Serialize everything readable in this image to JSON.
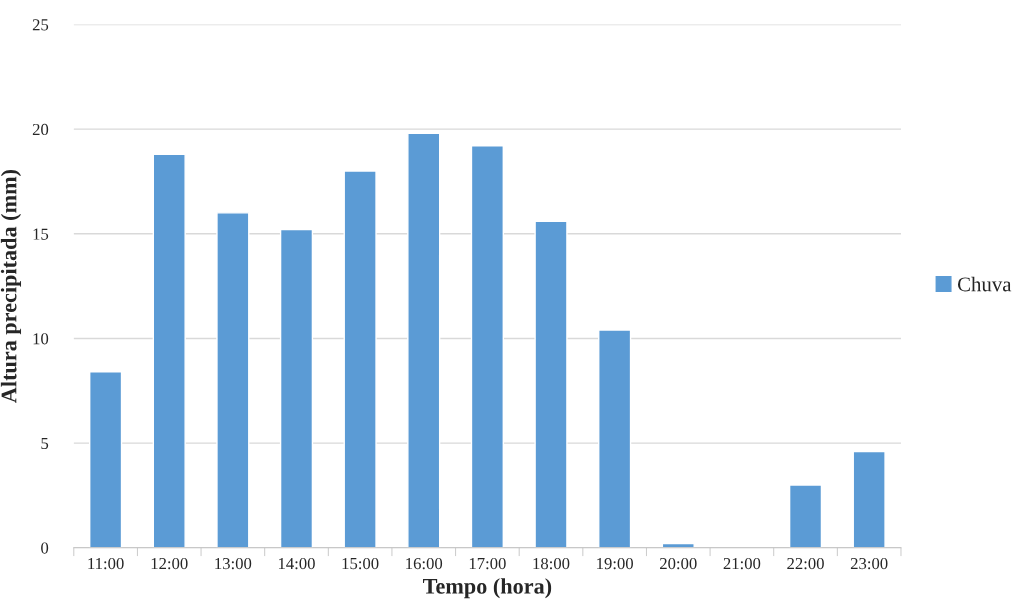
{
  "chart_data": {
    "type": "bar",
    "xlabel": "Tempo (hora)",
    "ylabel": "Altura precipitada (mm)",
    "categories": [
      "11:00",
      "12:00",
      "13:00",
      "14:00",
      "15:00",
      "16:00",
      "17:00",
      "18:00",
      "19:00",
      "20:00",
      "21:00",
      "22:00",
      "23:00"
    ],
    "series": [
      {
        "name": "Chuva",
        "color": "#5b9bd5",
        "values": [
          8.4,
          18.8,
          16.0,
          15.2,
          18.0,
          19.8,
          19.2,
          15.6,
          10.4,
          0.2,
          null,
          3.0,
          4.6
        ]
      }
    ],
    "ylim": [
      0,
      25
    ],
    "yticks": [
      0,
      5,
      10,
      15,
      20,
      25
    ],
    "grid": "y",
    "legend": "right"
  }
}
